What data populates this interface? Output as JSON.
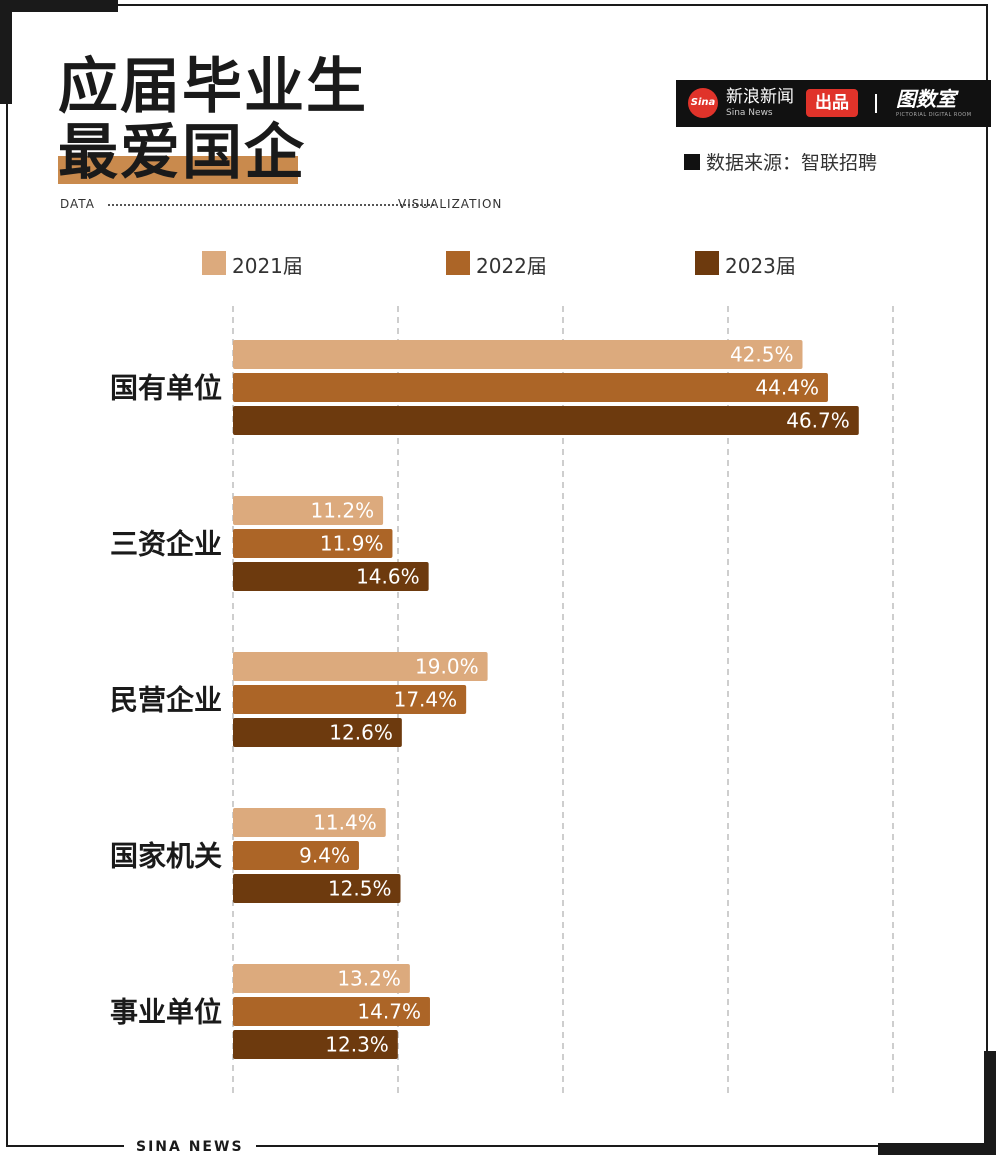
{
  "title_line1": "应届毕业生",
  "title_line2": "最爱国企",
  "meta_left": "DATA",
  "meta_right": "VISUALIZATION",
  "brand": {
    "logo_text": "Sina",
    "name": "新浪新闻",
    "sub": "Sina News",
    "badge": "出品",
    "right": "图数室",
    "right_sub": "PICTORIAL DIGITAL ROOM"
  },
  "source": "数据来源：智联招聘",
  "footer": "SINA NEWS",
  "colors": {
    "s2021": "#dcaa7d",
    "s2022": "#ac6527",
    "s2023": "#6d3a0e",
    "accent": "#c98a4d"
  },
  "chart_data": {
    "type": "bar",
    "orientation": "horizontal",
    "categories": [
      "国有单位",
      "三资企业",
      "民营企业",
      "国家机关",
      "事业单位"
    ],
    "series": [
      {
        "name": "2021届",
        "values": [
          42.5,
          11.2,
          19.0,
          11.4,
          13.2
        ],
        "labels": [
          "42.5%",
          "11.2%",
          "19.0%",
          "11.4%",
          "13.2%"
        ]
      },
      {
        "name": "2022届",
        "values": [
          44.4,
          11.9,
          17.4,
          9.4,
          14.7
        ],
        "labels": [
          "44.4%",
          "11.9%",
          "17.4%",
          "9.4%",
          "14.7%"
        ]
      },
      {
        "name": "2023届",
        "values": [
          46.7,
          14.6,
          12.6,
          12.5,
          12.3
        ],
        "labels": [
          "46.7%",
          "14.6%",
          "12.6%",
          "12.5%",
          "12.3%"
        ]
      }
    ],
    "xlim": [
      0,
      49.2
    ],
    "grid": true,
    "legend": "top"
  }
}
